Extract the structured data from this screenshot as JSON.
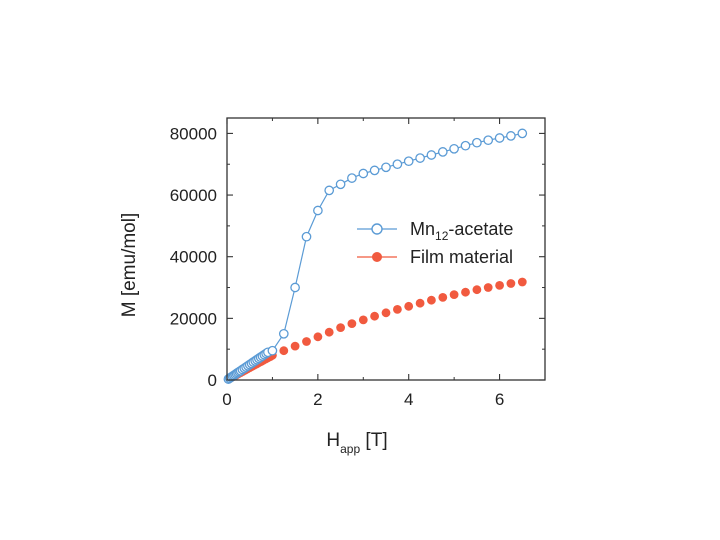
{
  "chart_data": {
    "type": "scatter",
    "title": "",
    "xlabel": {
      "main": "H",
      "sub": "app",
      "unit": " [T]"
    },
    "ylabel": "M [emu/mol]",
    "xlim": [
      0,
      7
    ],
    "ylim": [
      0,
      85000
    ],
    "xticks": [
      0,
      2,
      4,
      6
    ],
    "yticks": [
      0,
      20000,
      40000,
      60000,
      80000
    ],
    "grid": false,
    "legend_position": "center-right",
    "series": [
      {
        "name": "Mn12-acetate",
        "legend": {
          "pre": "Mn",
          "sub": "12",
          "post": "-acetate"
        },
        "marker": "open-circle",
        "color": "#5b9bd5",
        "line": true,
        "x": [
          0.03,
          0.06,
          0.09,
          0.12,
          0.15,
          0.18,
          0.21,
          0.24,
          0.27,
          0.3,
          0.34,
          0.38,
          0.42,
          0.46,
          0.5,
          0.54,
          0.58,
          0.62,
          0.66,
          0.7,
          0.74,
          0.78,
          0.82,
          0.86,
          0.9,
          1.0,
          1.25,
          1.5,
          1.75,
          2.0,
          2.25,
          2.5,
          2.75,
          3.0,
          3.25,
          3.5,
          3.75,
          4.0,
          4.25,
          4.5,
          4.75,
          5.0,
          5.25,
          5.5,
          5.75,
          6.0,
          6.25,
          6.5
        ],
        "y": [
          300,
          600,
          900,
          1200,
          1500,
          1800,
          2100,
          2400,
          2700,
          3000,
          3400,
          3800,
          4200,
          4600,
          5000,
          5400,
          5800,
          6200,
          6600,
          7000,
          7400,
          7800,
          8200,
          8600,
          9000,
          9500,
          15000,
          30000,
          46500,
          55000,
          61500,
          63500,
          65500,
          67000,
          68000,
          69000,
          70000,
          71000,
          72000,
          73000,
          74000,
          75000,
          76000,
          77000,
          77800,
          78500,
          79200,
          80000
        ]
      },
      {
        "name": "Film material",
        "marker": "filled-circle",
        "color": "#f15a3f",
        "line": false,
        "x": [
          0.05,
          0.1,
          0.15,
          0.2,
          0.25,
          0.3,
          0.35,
          0.4,
          0.45,
          0.5,
          0.55,
          0.6,
          0.65,
          0.7,
          0.75,
          0.8,
          0.85,
          0.9,
          0.95,
          1.0,
          1.25,
          1.5,
          1.75,
          2.0,
          2.25,
          2.5,
          2.75,
          3.0,
          3.25,
          3.5,
          3.75,
          4.0,
          4.25,
          4.5,
          4.75,
          5.0,
          5.25,
          5.5,
          5.75,
          6.0,
          6.25,
          6.5
        ],
        "y": [
          400,
          800,
          1200,
          1600,
          2000,
          2400,
          2800,
          3200,
          3600,
          4000,
          4400,
          4800,
          5200,
          5600,
          6000,
          6400,
          6800,
          7200,
          7600,
          8000,
          9500,
          11000,
          12500,
          14000,
          15500,
          17000,
          18300,
          19500,
          20700,
          21800,
          22900,
          23900,
          24900,
          25900,
          26800,
          27700,
          28500,
          29300,
          30000,
          30700,
          31300,
          31800
        ]
      }
    ]
  }
}
